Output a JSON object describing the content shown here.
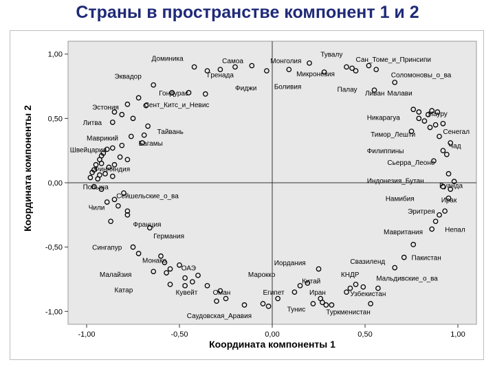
{
  "title": "Страны в пространстве компонент 1 и 2",
  "colors": {
    "plot_bg": "#e8e8e8",
    "title": "#1f2a78",
    "marker": "#000000",
    "text": "#000000"
  },
  "chart_data": {
    "type": "scatter",
    "xlabel": "Координата компоненты 1",
    "ylabel": "Координата компоненты 2",
    "xlim": [
      -1.1,
      1.1
    ],
    "ylim": [
      -1.1,
      1.1
    ],
    "x_ticks": [
      -1.0,
      -0.5,
      0.0,
      0.5,
      1.0
    ],
    "x_tick_labels": [
      "-1,00",
      "-0,50",
      "0,00",
      "0,50",
      "1,00"
    ],
    "y_ticks": [
      1.0,
      0.5,
      0.0,
      -0.5,
      -1.0
    ],
    "y_tick_labels": [
      "1,00",
      "0,50",
      "0,00",
      "-0,50",
      "-1,00"
    ],
    "reference_lines": {
      "x": 0,
      "y": 0
    },
    "grid": false,
    "legend": "none",
    "points": [
      {
        "x": -0.42,
        "y": 0.9
      },
      {
        "x": -0.35,
        "y": 0.87
      },
      {
        "x": -0.28,
        "y": 0.88
      },
      {
        "x": -0.2,
        "y": 0.9
      },
      {
        "x": -0.11,
        "y": 0.91
      },
      {
        "x": -0.03,
        "y": 0.87
      },
      {
        "x": 0.09,
        "y": 0.88
      },
      {
        "x": 0.2,
        "y": 0.93
      },
      {
        "x": 0.28,
        "y": 0.86
      },
      {
        "x": 0.4,
        "y": 0.9
      },
      {
        "x": 0.43,
        "y": 0.89
      },
      {
        "x": 0.45,
        "y": 0.87
      },
      {
        "x": 0.52,
        "y": 0.91
      },
      {
        "x": 0.56,
        "y": 0.88
      },
      {
        "x": 0.66,
        "y": 0.78
      },
      {
        "x": 0.55,
        "y": 0.72
      },
      {
        "x": -0.64,
        "y": 0.76
      },
      {
        "x": -0.54,
        "y": 0.7
      },
      {
        "x": -0.45,
        "y": 0.7
      },
      {
        "x": -0.36,
        "y": 0.69
      },
      {
        "x": -0.72,
        "y": 0.66
      },
      {
        "x": -0.78,
        "y": 0.61
      },
      {
        "x": -0.68,
        "y": 0.6
      },
      {
        "x": -0.85,
        "y": 0.55
      },
      {
        "x": -0.81,
        "y": 0.53
      },
      {
        "x": -0.75,
        "y": 0.5
      },
      {
        "x": -0.86,
        "y": 0.47
      },
      {
        "x": -0.67,
        "y": 0.44
      },
      {
        "x": -0.76,
        "y": 0.36
      },
      {
        "x": -0.69,
        "y": 0.37
      },
      {
        "x": -0.7,
        "y": 0.31
      },
      {
        "x": -0.81,
        "y": 0.29
      },
      {
        "x": -0.89,
        "y": 0.26
      },
      {
        "x": -0.86,
        "y": 0.27
      },
      {
        "x": -0.91,
        "y": 0.23
      },
      {
        "x": -0.92,
        "y": 0.21
      },
      {
        "x": -0.82,
        "y": 0.2
      },
      {
        "x": -0.93,
        "y": 0.18
      },
      {
        "x": -0.95,
        "y": 0.14
      },
      {
        "x": -0.92,
        "y": 0.15
      },
      {
        "x": -0.88,
        "y": 0.12
      },
      {
        "x": -0.85,
        "y": 0.14
      },
      {
        "x": -0.78,
        "y": 0.18
      },
      {
        "x": -0.96,
        "y": 0.1
      },
      {
        "x": -0.97,
        "y": 0.08
      },
      {
        "x": -0.93,
        "y": 0.06
      },
      {
        "x": -0.94,
        "y": 0.03
      },
      {
        "x": -0.98,
        "y": 0.04
      },
      {
        "x": -0.9,
        "y": 0.07
      },
      {
        "x": -0.86,
        "y": 0.05
      },
      {
        "x": -0.96,
        "y": -0.03
      },
      {
        "x": -0.92,
        "y": -0.05
      },
      {
        "x": -0.8,
        "y": -0.08
      },
      {
        "x": -0.85,
        "y": -0.13
      },
      {
        "x": -0.89,
        "y": -0.15
      },
      {
        "x": -0.83,
        "y": -0.18
      },
      {
        "x": -0.78,
        "y": -0.22
      },
      {
        "x": -0.78,
        "y": -0.25
      },
      {
        "x": -0.87,
        "y": -0.3
      },
      {
        "x": -0.66,
        "y": -0.35
      },
      {
        "x": -0.75,
        "y": -0.5
      },
      {
        "x": -0.72,
        "y": -0.55
      },
      {
        "x": -0.6,
        "y": -0.57
      },
      {
        "x": -0.58,
        "y": -0.62
      },
      {
        "x": -0.5,
        "y": -0.64
      },
      {
        "x": -0.55,
        "y": -0.67
      },
      {
        "x": -0.64,
        "y": -0.69
      },
      {
        "x": -0.57,
        "y": -0.7
      },
      {
        "x": -0.4,
        "y": -0.72
      },
      {
        "x": -0.47,
        "y": -0.74
      },
      {
        "x": -0.43,
        "y": -0.77
      },
      {
        "x": -0.47,
        "y": -0.8
      },
      {
        "x": -0.55,
        "y": -0.79
      },
      {
        "x": -0.35,
        "y": -0.8
      },
      {
        "x": -0.28,
        "y": -0.84
      },
      {
        "x": -0.25,
        "y": -0.9
      },
      {
        "x": -0.3,
        "y": -0.92
      },
      {
        "x": -0.15,
        "y": -0.95
      },
      {
        "x": -0.05,
        "y": -0.94
      },
      {
        "x": -0.02,
        "y": -0.96
      },
      {
        "x": 0.03,
        "y": -0.9
      },
      {
        "x": 0.12,
        "y": -0.85
      },
      {
        "x": 0.15,
        "y": -0.8
      },
      {
        "x": 0.19,
        "y": -0.78
      },
      {
        "x": 0.25,
        "y": -0.67
      },
      {
        "x": 0.26,
        "y": -0.9
      },
      {
        "x": 0.27,
        "y": -0.93
      },
      {
        "x": 0.22,
        "y": -0.94
      },
      {
        "x": 0.29,
        "y": -0.95
      },
      {
        "x": 0.32,
        "y": -0.95
      },
      {
        "x": 0.4,
        "y": -0.85
      },
      {
        "x": 0.42,
        "y": -0.82
      },
      {
        "x": 0.45,
        "y": -0.79
      },
      {
        "x": 0.49,
        "y": -0.81
      },
      {
        "x": 0.53,
        "y": -0.94
      },
      {
        "x": 0.57,
        "y": -0.82
      },
      {
        "x": 0.66,
        "y": -0.66
      },
      {
        "x": 0.71,
        "y": -0.58
      },
      {
        "x": 0.76,
        "y": -0.48
      },
      {
        "x": 0.86,
        "y": -0.36
      },
      {
        "x": 0.88,
        "y": -0.3
      },
      {
        "x": 0.9,
        "y": -0.25
      },
      {
        "x": 0.93,
        "y": -0.22
      },
      {
        "x": 0.95,
        "y": -0.12
      },
      {
        "x": 0.96,
        "y": -0.05
      },
      {
        "x": 0.92,
        "y": -0.03
      },
      {
        "x": 0.98,
        "y": 0.01
      },
      {
        "x": 0.95,
        "y": 0.07
      },
      {
        "x": 0.87,
        "y": 0.17
      },
      {
        "x": 0.94,
        "y": 0.22
      },
      {
        "x": 0.92,
        "y": 0.25
      },
      {
        "x": 0.96,
        "y": 0.31
      },
      {
        "x": 0.9,
        "y": 0.36
      },
      {
        "x": 0.85,
        "y": 0.43
      },
      {
        "x": 0.88,
        "y": 0.45
      },
      {
        "x": 0.92,
        "y": 0.46
      },
      {
        "x": 0.79,
        "y": 0.55
      },
      {
        "x": 0.86,
        "y": 0.56
      },
      {
        "x": 0.89,
        "y": 0.55
      },
      {
        "x": 0.84,
        "y": 0.53
      },
      {
        "x": 0.76,
        "y": 0.57
      },
      {
        "x": 0.79,
        "y": 0.5
      },
      {
        "x": 0.82,
        "y": 0.48
      },
      {
        "x": 0.75,
        "y": 0.4
      }
    ],
    "annotations": [
      {
        "text": "Доминика",
        "x": -0.65,
        "y": 0.97
      },
      {
        "text": "Самоа",
        "x": -0.27,
        "y": 0.95
      },
      {
        "text": "Монголия",
        "x": -0.01,
        "y": 0.95
      },
      {
        "text": "Тувалу",
        "x": 0.26,
        "y": 1.0
      },
      {
        "text": "Сан_Томе_и_Принсипи",
        "x": 0.45,
        "y": 0.96
      },
      {
        "text": "Эквадор",
        "x": -0.85,
        "y": 0.83
      },
      {
        "text": "Гренада",
        "x": -0.35,
        "y": 0.84
      },
      {
        "text": "Микронезия",
        "x": 0.13,
        "y": 0.85
      },
      {
        "text": "Соломоновы_о_ва",
        "x": 0.64,
        "y": 0.84
      },
      {
        "text": "Фиджи",
        "x": -0.2,
        "y": 0.74
      },
      {
        "text": "Боливия",
        "x": 0.01,
        "y": 0.75
      },
      {
        "text": "Палау",
        "x": 0.35,
        "y": 0.73
      },
      {
        "text": "Ливан",
        "x": 0.5,
        "y": 0.7
      },
      {
        "text": "Малави",
        "x": 0.62,
        "y": 0.7
      },
      {
        "text": "Гондурас",
        "x": -0.61,
        "y": 0.7
      },
      {
        "text": "Эстония",
        "x": -0.97,
        "y": 0.59
      },
      {
        "text": "Сент_Китс_и_Невис",
        "x": -0.69,
        "y": 0.61
      },
      {
        "text": "Науру",
        "x": 0.84,
        "y": 0.54
      },
      {
        "text": "Никарагуа",
        "x": 0.51,
        "y": 0.51
      },
      {
        "text": "Литва",
        "x": -1.02,
        "y": 0.47
      },
      {
        "text": "Тайвань",
        "x": -0.62,
        "y": 0.4
      },
      {
        "text": "Сенегал",
        "x": 0.92,
        "y": 0.4
      },
      {
        "text": "Маврикий",
        "x": -1.0,
        "y": 0.35
      },
      {
        "text": "Тимор_Лешти",
        "x": 0.53,
        "y": 0.38
      },
      {
        "text": "Багамы",
        "x": -0.72,
        "y": 0.31
      },
      {
        "text": "Чад",
        "x": 0.95,
        "y": 0.29
      },
      {
        "text": "Швейцария",
        "x": -1.09,
        "y": 0.26
      },
      {
        "text": "Филиппины",
        "x": 0.51,
        "y": 0.25
      },
      {
        "text": "Сьерра_Леоне",
        "x": 0.62,
        "y": 0.16
      },
      {
        "text": "Финляндия",
        "x": -0.96,
        "y": 0.11
      },
      {
        "text": "Индонезия_Бутан",
        "x": 0.51,
        "y": 0.02
      },
      {
        "text": "Руанда",
        "x": 0.9,
        "y": -0.02
      },
      {
        "text": "Польша",
        "x": -1.02,
        "y": -0.03
      },
      {
        "text": "Намибия",
        "x": 0.61,
        "y": -0.12
      },
      {
        "text": "Ирак",
        "x": 0.91,
        "y": -0.13
      },
      {
        "text": "Сейшельские_о_ва",
        "x": -0.84,
        "y": -0.1
      },
      {
        "text": "Чили",
        "x": -0.99,
        "y": -0.19
      },
      {
        "text": "Эритрея",
        "x": 0.73,
        "y": -0.22
      },
      {
        "text": "Франция",
        "x": -0.75,
        "y": -0.32
      },
      {
        "text": "Германия",
        "x": -0.64,
        "y": -0.41
      },
      {
        "text": "Мавритания",
        "x": 0.6,
        "y": -0.38
      },
      {
        "text": "Непал",
        "x": 0.93,
        "y": -0.36
      },
      {
        "text": "Сингапур",
        "x": -0.97,
        "y": -0.5
      },
      {
        "text": "Монако",
        "x": -0.7,
        "y": -0.6
      },
      {
        "text": "Пакистан",
        "x": 0.75,
        "y": -0.58
      },
      {
        "text": "Свазиленд",
        "x": 0.42,
        "y": -0.61
      },
      {
        "text": "Иордания",
        "x": 0.01,
        "y": -0.62
      },
      {
        "text": "ОАЭ",
        "x": -0.49,
        "y": -0.66
      },
      {
        "text": "Малайзия",
        "x": -0.93,
        "y": -0.71
      },
      {
        "text": "Марокко",
        "x": -0.13,
        "y": -0.71
      },
      {
        "text": "Китай",
        "x": 0.16,
        "y": -0.76
      },
      {
        "text": "КНДР",
        "x": 0.37,
        "y": -0.71
      },
      {
        "text": "Мальдивские_о_ва",
        "x": 0.56,
        "y": -0.74
      },
      {
        "text": "Катар",
        "x": -0.85,
        "y": -0.83
      },
      {
        "text": "Кувейт",
        "x": -0.52,
        "y": -0.85
      },
      {
        "text": "Оман",
        "x": -0.32,
        "y": -0.85
      },
      {
        "text": "Египет",
        "x": -0.05,
        "y": -0.85
      },
      {
        "text": "Иран",
        "x": 0.2,
        "y": -0.85
      },
      {
        "text": "Узбекистан",
        "x": 0.42,
        "y": -0.86
      },
      {
        "text": "Тунис",
        "x": 0.08,
        "y": -0.98
      },
      {
        "text": "Туркменистан",
        "x": 0.29,
        "y": -1.0
      },
      {
        "text": "Саудовская_Аравия",
        "x": -0.46,
        "y": -1.03
      }
    ]
  }
}
